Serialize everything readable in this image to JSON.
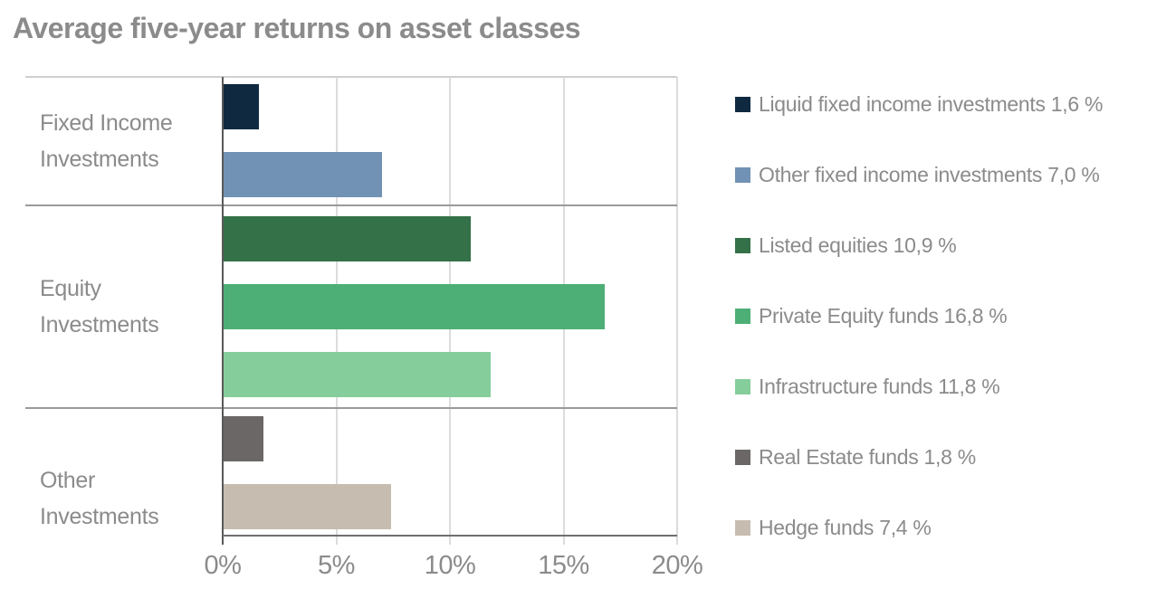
{
  "title": "Average five-year returns on asset classes",
  "chart_data": {
    "type": "bar",
    "orientation": "horizontal",
    "title": "Average five-year returns on asset classes",
    "xlim": [
      0,
      20
    ],
    "x_tick_labels": [
      "0%",
      "5%",
      "10%",
      "15%",
      "20%"
    ],
    "grid": true,
    "legend_position": "right",
    "groups": [
      {
        "label_lines": [
          "Fixed Income",
          "Investments"
        ],
        "bars": [
          {
            "name": "Liquid fixed income investments",
            "value": 1.6,
            "value_label": "1,6 %",
            "color": "#0f2a40"
          },
          {
            "name": "Other fixed income investments",
            "value": 7.0,
            "value_label": "7,0 %",
            "color": "#7192b4"
          }
        ]
      },
      {
        "label_lines": [
          "Equity",
          "Investments"
        ],
        "bars": [
          {
            "name": "Listed equities",
            "value": 10.9,
            "value_label": "10,9 %",
            "color": "#347149"
          },
          {
            "name": "Private Equity funds",
            "value": 16.8,
            "value_label": "16,8 %",
            "color": "#4daf75"
          },
          {
            "name": "Infrastructure funds",
            "value": 11.8,
            "value_label": "11,8 %",
            "color": "#85cd9b"
          }
        ]
      },
      {
        "label_lines": [
          "Other",
          "Investments"
        ],
        "bars": [
          {
            "name": "Real Estate funds",
            "value": 1.8,
            "value_label": "1,8 %",
            "color": "#6b6767"
          },
          {
            "name": "Hedge funds",
            "value": 7.4,
            "value_label": "7,4 %",
            "color": "#c6bdb0"
          }
        ]
      }
    ],
    "legend": [
      {
        "label": "Liquid fixed income investments 1,6 %",
        "color": "#0f2a40"
      },
      {
        "label": "Other fixed income investments 7,0 %",
        "color": "#7192b4"
      },
      {
        "label": "Listed equities 10,9 %",
        "color": "#347149"
      },
      {
        "label": "Private Equity funds 16,8 %",
        "color": "#4daf75"
      },
      {
        "label": "Infrastructure funds 11,8 %",
        "color": "#85cd9b"
      },
      {
        "label": "Real Estate funds 1,8 %",
        "color": "#6b6767"
      },
      {
        "label": "Hedge funds 7,4 %",
        "color": "#c6bdb0"
      }
    ]
  }
}
